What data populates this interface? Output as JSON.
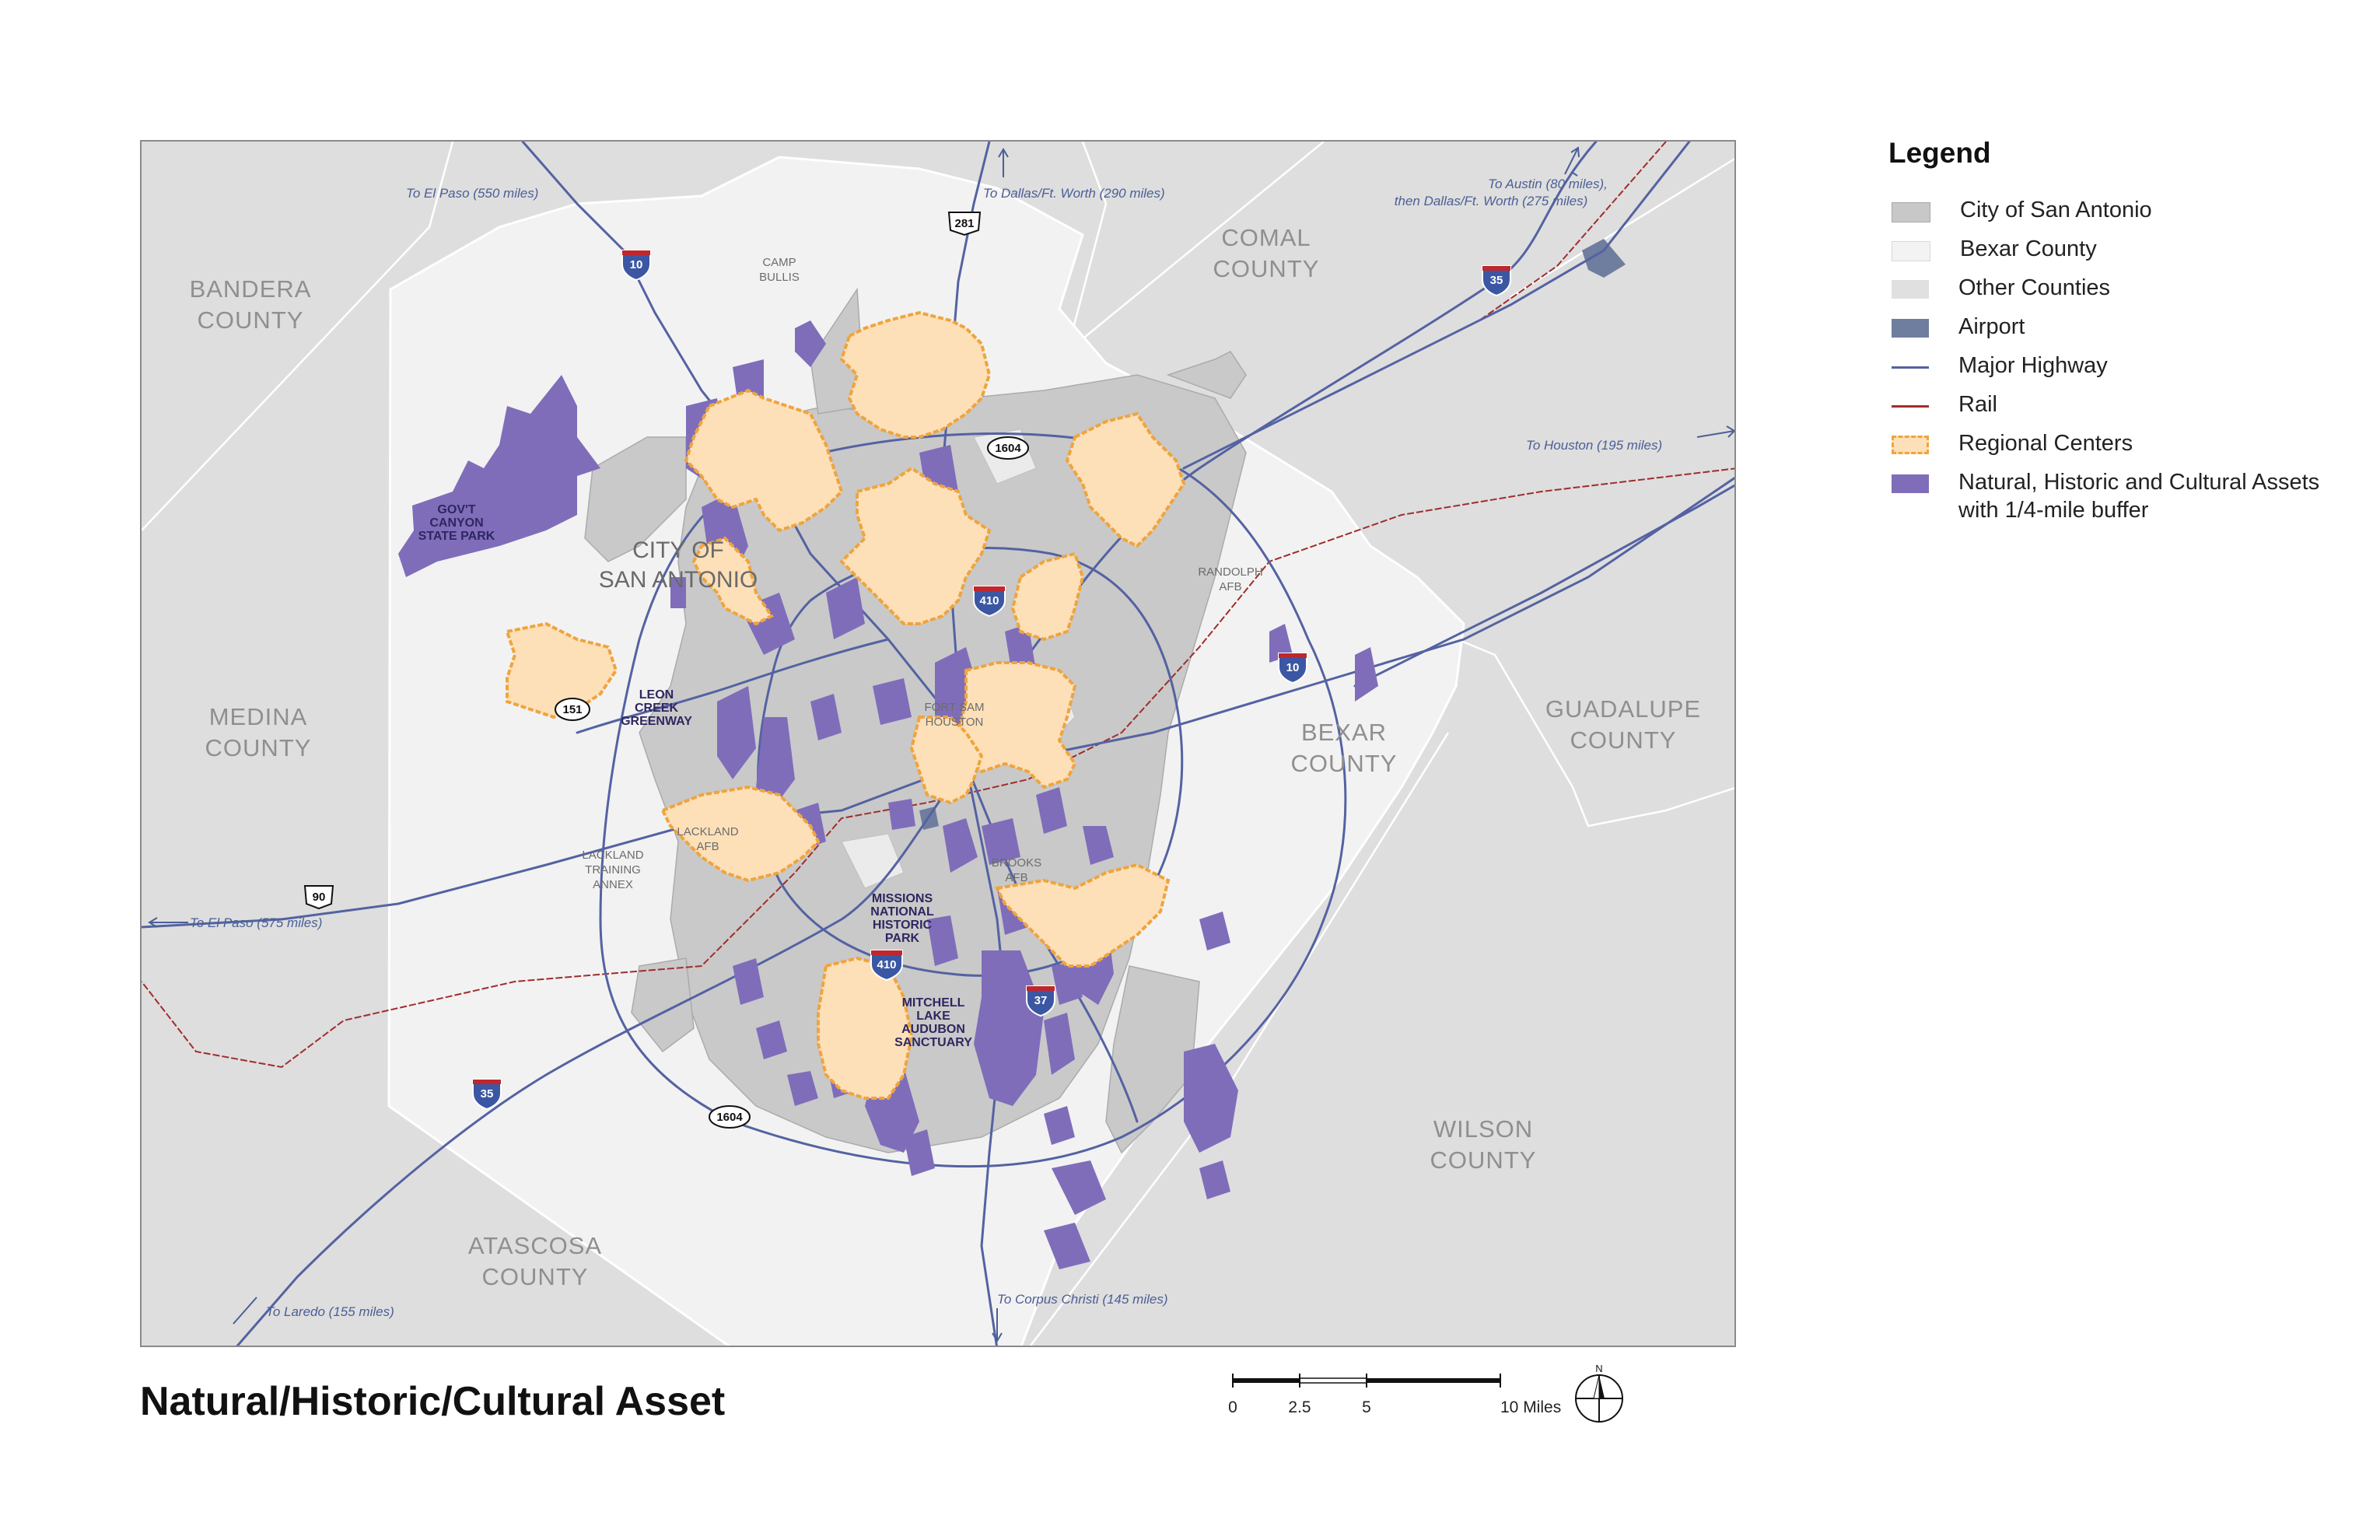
{
  "title": "Natural/Historic/Cultural Asset",
  "legend": {
    "title": "Legend",
    "items": [
      {
        "key": "city",
        "label": "City of San Antonio",
        "color": "#c8c8c8"
      },
      {
        "key": "bexar",
        "label": "Bexar County",
        "color": "#f3f3f3"
      },
      {
        "key": "other",
        "label": "Other Counties",
        "color": "#e0e0e0"
      },
      {
        "key": "airport",
        "label": "Airport",
        "color": "#6f7d9f"
      },
      {
        "key": "highway",
        "label": "Major Highway",
        "color": "#5462a2"
      },
      {
        "key": "rail",
        "label": "Rail",
        "color": "#a02d2d"
      },
      {
        "key": "regional",
        "label": "Regional Centers",
        "color": "#f0a43c"
      },
      {
        "key": "assets",
        "label": "Natural, Historic and Cultural Assets",
        "label2": "with 1/4-mile buffer",
        "color": "#7f6dba"
      }
    ]
  },
  "map": {
    "counties": {
      "bandera": [
        "BANDERA",
        "COUNTY"
      ],
      "medina": [
        "MEDINA",
        "COUNTY"
      ],
      "comal": [
        "COMAL",
        "COUNTY"
      ],
      "guadalupe": [
        "GUADALUPE",
        "COUNTY"
      ],
      "bexar": [
        "BEXAR",
        "COUNTY"
      ],
      "wilson": [
        "WILSON",
        "COUNTY"
      ],
      "atascosa": [
        "ATASCOSA",
        "COUNTY"
      ]
    },
    "city_label": [
      "CITY OF",
      "SAN ANTONIO"
    ],
    "places": {
      "camp_bullis": [
        "CAMP",
        "BULLIS"
      ],
      "randolph": [
        "RANDOLPH",
        "AFB"
      ],
      "fort_sam": [
        "FORT SAM",
        "HOUSTON"
      ],
      "lackland": [
        "LACKLAND",
        "AFB"
      ],
      "lackland_annex": [
        "LACKLAND",
        "TRAINING",
        "ANNEX"
      ],
      "brooks": [
        "BROOKS",
        "AFB"
      ]
    },
    "assets": {
      "govt_canyon": [
        "GOV'T",
        "CANYON",
        "STATE PARK"
      ],
      "leon_creek": [
        "LEON",
        "CREEK",
        "GREENWAY"
      ],
      "missions": [
        "MISSIONS",
        "NATIONAL",
        "HISTORIC",
        "PARK"
      ],
      "mitchell_lake": [
        "MITCHELL",
        "LAKE",
        "AUDUBON",
        "SANCTUARY"
      ]
    },
    "directions": {
      "el_paso_north": "To El Paso (550 miles)",
      "dallas": "To Dallas/Ft. Worth (290 miles)",
      "austin_1": "To Austin (80 miles),",
      "austin_2": "then Dallas/Ft. Worth (275 miles)",
      "houston": "To Houston (195 miles)",
      "el_paso_west": "To El Paso (575 miles)",
      "laredo": "To Laredo (155 miles)",
      "corpus": "To Corpus Christi (145 miles)"
    },
    "shields": {
      "i10_north": "10",
      "i35_north": "35",
      "i10_east": "10",
      "i410_north": "410",
      "i410_south": "410",
      "i37": "37",
      "i35_south": "35",
      "us281": "281",
      "us90": "90",
      "lp1604_north": "1604",
      "lp1604_south": "1604",
      "sh151": "151"
    }
  },
  "scale": {
    "ticks": [
      "0",
      "2.5",
      "5",
      "10 Miles"
    ],
    "north": "N"
  }
}
